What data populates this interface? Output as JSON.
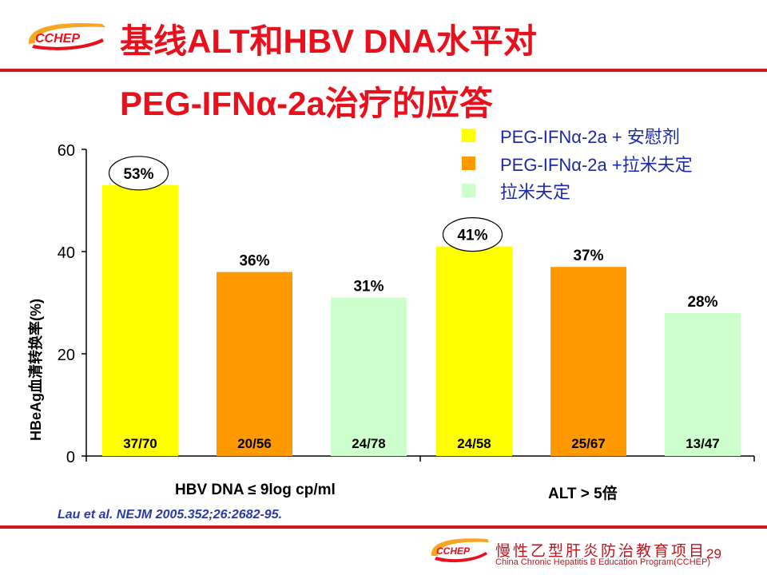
{
  "slide": {
    "title_line1": "基线ALT和HBV DNA水平对",
    "title_line2": "PEG-IFNα-2a治疗的应答",
    "logo_text": "CCHEP",
    "citation": "Lau et al. NEJM 2005.352;26:2682-95.",
    "footer_org_cn": "慢性乙型肝炎防治教育项目",
    "footer_org_en": "China Chronic Hepatitis B Education Program(CCHEP)",
    "page_number": "29"
  },
  "colors": {
    "accent_red": "#d4141c",
    "series_peg_placebo": "#ffff00",
    "series_peg_lam": "#ff9900",
    "series_lam": "#ccffcc"
  },
  "chart_data": {
    "type": "bar",
    "ylabel": "HBeAg血清转换率(%)",
    "xlabel": "",
    "ylim": [
      0,
      60
    ],
    "yticks": [
      0,
      20,
      40,
      60
    ],
    "categories": [
      "HBV DNA  ≤ 9log cp/ml",
      "ALT > 5倍"
    ],
    "series": [
      {
        "name": "PEG-IFNα-2a  +  安慰剂",
        "values": [
          53,
          41
        ],
        "labels": [
          "53%",
          "41%"
        ],
        "counts": [
          "37/70",
          "24/58"
        ],
        "color": "#ffff00"
      },
      {
        "name": "PEG-IFNα-2a  +拉米夫定",
        "values": [
          36,
          37
        ],
        "labels": [
          "36%",
          "37%"
        ],
        "counts": [
          "20/56",
          "25/67"
        ],
        "color": "#ff9900"
      },
      {
        "name": "拉米夫定",
        "values": [
          31,
          28
        ],
        "labels": [
          "31%",
          "28%"
        ],
        "counts": [
          "24/78",
          "13/47"
        ],
        "color": "#ccffcc"
      }
    ],
    "circled_labels": [
      "53%",
      "41%"
    ]
  }
}
